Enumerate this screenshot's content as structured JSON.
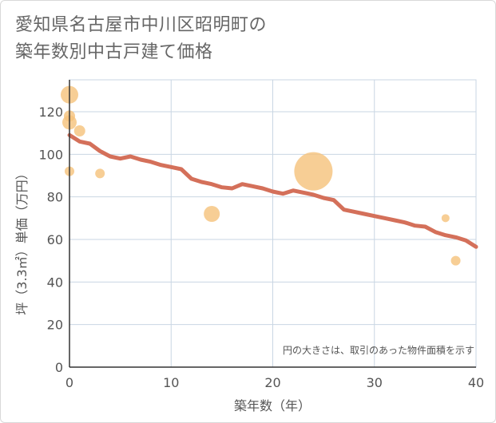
{
  "title": {
    "line1": "愛知県名古屋市中川区昭明町の",
    "line2": "築年数別中古戸建て価格"
  },
  "colors": {
    "line": "#d4705a",
    "bubble": "#f5c27a",
    "grid": "#c9d6e3",
    "axis": "#333333",
    "text": "#555555"
  },
  "chart_data": {
    "type": "scatter",
    "title": "愛知県名古屋市中川区昭明町の築年数別中古戸建て価格",
    "xlabel": "築年数（年）",
    "ylabel": "坪（3.3㎡）単価（万円）",
    "xlim": [
      0,
      40
    ],
    "ylim": [
      0,
      135
    ],
    "xticks": [
      0,
      10,
      20,
      30,
      40
    ],
    "yticks": [
      0,
      20,
      40,
      60,
      80,
      100,
      120
    ],
    "grid": true,
    "note": "円の大きさは、取引のあった物件面積を示す",
    "trend_line": {
      "x": [
        0,
        1,
        2,
        3,
        4,
        5,
        6,
        7,
        8,
        9,
        10,
        11,
        12,
        13,
        14,
        15,
        16,
        17,
        18,
        19,
        20,
        21,
        22,
        23,
        24,
        25,
        26,
        27,
        28,
        29,
        30,
        31,
        32,
        33,
        34,
        35,
        36,
        37,
        38,
        39,
        40
      ],
      "y": [
        109,
        106,
        105,
        101.5,
        99,
        98,
        99,
        97.5,
        96.5,
        95,
        94,
        93,
        88.5,
        87,
        86,
        84.5,
        84,
        86,
        85,
        84,
        82.5,
        81.5,
        83,
        82,
        81,
        79.5,
        78.5,
        74,
        73,
        72,
        71,
        70,
        69,
        68,
        66.5,
        66,
        63.5,
        62,
        61,
        59.5,
        56.5
      ]
    },
    "bubbles": [
      {
        "x": 0,
        "y": 128,
        "size": 11
      },
      {
        "x": 0,
        "y": 118,
        "size": 7
      },
      {
        "x": 0,
        "y": 115,
        "size": 9
      },
      {
        "x": 1,
        "y": 111,
        "size": 7
      },
      {
        "x": 0,
        "y": 92,
        "size": 6
      },
      {
        "x": 3,
        "y": 91,
        "size": 6
      },
      {
        "x": 14,
        "y": 72,
        "size": 10
      },
      {
        "x": 24,
        "y": 92,
        "size": 24
      },
      {
        "x": 37,
        "y": 70,
        "size": 5
      },
      {
        "x": 38,
        "y": 50,
        "size": 6
      }
    ]
  }
}
